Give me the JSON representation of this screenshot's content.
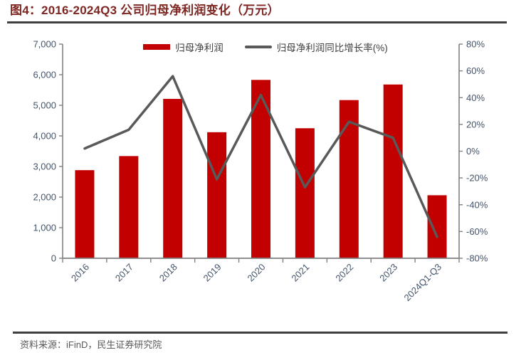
{
  "header": {
    "title": "图4：2016-2024Q3 公司归母净利润变化（万元）"
  },
  "footer": {
    "source": "资料来源：iFinD，民生证券研究院"
  },
  "colors": {
    "bar": "#c30000",
    "line": "#595959",
    "title": "#7e2622",
    "axis_line": "#808080",
    "axis_label": "#44546a",
    "legend_label": "#404040",
    "divider": "#3f3f3f",
    "footer_text": "#595959"
  },
  "chart_data": {
    "type": "bar",
    "subtype": "bar+line combo, dual axis",
    "title": "2016-2024Q3 公司归母净利润变化（万元）",
    "categories": [
      "2016",
      "2017",
      "2018",
      "2019",
      "2020",
      "2021",
      "2022",
      "2023",
      "2024Q1-Q3"
    ],
    "series": [
      {
        "name": "归母净利润",
        "type": "bar",
        "axis": "left",
        "color": "#c30000",
        "values": [
          2880,
          3340,
          5210,
          4120,
          5830,
          4250,
          5170,
          5680,
          2060
        ]
      },
      {
        "name": "归母净利润同比增长率(%)",
        "type": "line",
        "axis": "right",
        "color": "#595959",
        "values": [
          2,
          16,
          56,
          -21,
          42,
          -27,
          22,
          10,
          -64
        ]
      }
    ],
    "left_axis": {
      "min": 0,
      "max": 7000,
      "step": 1000,
      "tick_labels": [
        "0",
        "1,000",
        "2,000",
        "3,000",
        "4,000",
        "5,000",
        "6,000",
        "7,000"
      ]
    },
    "right_axis": {
      "min": -80,
      "max": 80,
      "step": 20,
      "tick_labels": [
        "-80%",
        "-60%",
        "-40%",
        "-20%",
        "0%",
        "20%",
        "40%",
        "60%",
        "80%"
      ]
    },
    "grid": "off",
    "legend_position": "top"
  }
}
